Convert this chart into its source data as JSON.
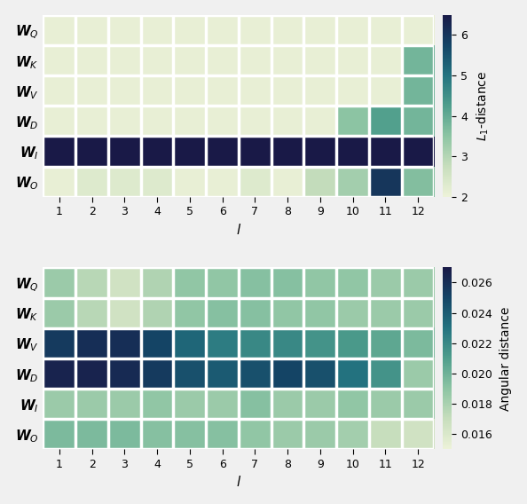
{
  "ylabel1": "$L_1$-distance",
  "ylabel2": "Angular distance",
  "xlabel": "$l$",
  "ytick_labels": [
    "$\\boldsymbol{W}_Q$",
    "$\\boldsymbol{W}_K$",
    "$\\boldsymbol{W}_V$",
    "$\\boldsymbol{W}_D$",
    "$\\boldsymbol{W}_I$",
    "$\\boldsymbol{W}_O$"
  ],
  "xtick_labels": [
    "1",
    "2",
    "3",
    "4",
    "5",
    "6",
    "7",
    "8",
    "9",
    "10",
    "11",
    "12"
  ],
  "heatmap1": [
    [
      2.1,
      2.1,
      2.1,
      2.1,
      2.1,
      2.1,
      2.1,
      2.1,
      2.1,
      2.1,
      2.1,
      2.1
    ],
    [
      2.1,
      2.1,
      2.1,
      2.1,
      2.1,
      2.1,
      2.1,
      2.1,
      2.1,
      2.1,
      2.1,
      3.8
    ],
    [
      2.1,
      2.1,
      2.1,
      2.1,
      2.1,
      2.1,
      2.1,
      2.1,
      2.1,
      2.1,
      2.1,
      3.8
    ],
    [
      2.1,
      2.1,
      2.1,
      2.1,
      2.1,
      2.1,
      2.1,
      2.1,
      2.1,
      3.5,
      4.2,
      3.8
    ],
    [
      6.5,
      6.5,
      6.5,
      6.5,
      6.5,
      6.5,
      6.5,
      6.5,
      6.5,
      6.5,
      6.5,
      6.5
    ],
    [
      2.1,
      2.3,
      2.3,
      2.3,
      2.1,
      2.1,
      2.3,
      2.1,
      2.8,
      3.2,
      6.0,
      3.6
    ]
  ],
  "heatmap1_vmin": 2.0,
  "heatmap1_vmax": 6.5,
  "heatmap2": [
    [
      0.0185,
      0.0175,
      0.0165,
      0.0178,
      0.0188,
      0.0188,
      0.0192,
      0.0192,
      0.0188,
      0.0188,
      0.0185,
      0.0185
    ],
    [
      0.0185,
      0.0175,
      0.0165,
      0.0178,
      0.0188,
      0.0192,
      0.0192,
      0.0188,
      0.0188,
      0.0185,
      0.0185,
      0.0185
    ],
    [
      0.0255,
      0.026,
      0.026,
      0.025,
      0.0235,
      0.0225,
      0.022,
      0.022,
      0.0215,
      0.0212,
      0.0205,
      0.0195
    ],
    [
      0.0265,
      0.0265,
      0.0262,
      0.0255,
      0.0245,
      0.024,
      0.0245,
      0.025,
      0.0245,
      0.023,
      0.0215,
      0.0185
    ],
    [
      0.0185,
      0.0185,
      0.0185,
      0.0188,
      0.0185,
      0.0185,
      0.0192,
      0.0185,
      0.0185,
      0.0188,
      0.0185,
      0.0185
    ],
    [
      0.0195,
      0.0195,
      0.0195,
      0.0192,
      0.0192,
      0.0192,
      0.0188,
      0.0185,
      0.0185,
      0.0182,
      0.017,
      0.0165
    ]
  ],
  "heatmap2_vmin": 0.015,
  "heatmap2_vmax": 0.027,
  "cbar1_ticks": [
    2,
    3,
    4,
    5,
    6
  ],
  "cbar2_ticks": [
    0.016,
    0.018,
    0.02,
    0.022,
    0.024,
    0.026
  ],
  "cbar2_ticklabels": [
    "0.016",
    "0.018",
    "0.020",
    "0.022",
    "0.024",
    "0.026"
  ],
  "figsize": [
    5.94,
    5.68
  ],
  "dpi": 100,
  "bg_color": "#f0f0f0"
}
